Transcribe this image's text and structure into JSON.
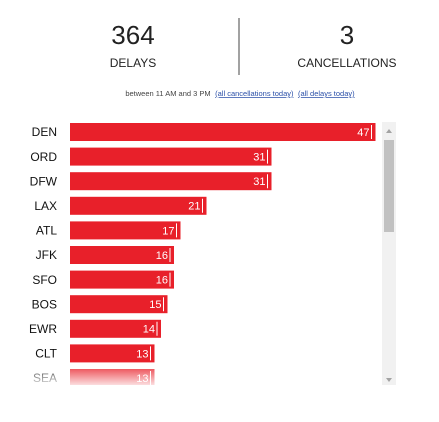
{
  "stats": {
    "delays": {
      "count": "364",
      "label": "DELAYS"
    },
    "cancellations": {
      "count": "3",
      "label": "CANCELLATIONS"
    }
  },
  "subtitle": {
    "text": "between 11 AM and 3 PM",
    "links": [
      "(all cancellations today)",
      "(all delays today)"
    ]
  },
  "chart_data": {
    "type": "bar",
    "orientation": "horizontal",
    "color": "#e8202a",
    "categories": [
      "DEN",
      "ORD",
      "DFW",
      "LAX",
      "ATL",
      "JFK",
      "SFO",
      "BOS",
      "EWR",
      "CLT",
      "SEA"
    ],
    "values": [
      47,
      31,
      31,
      21,
      17,
      16,
      16,
      15,
      14,
      13,
      13
    ]
  }
}
